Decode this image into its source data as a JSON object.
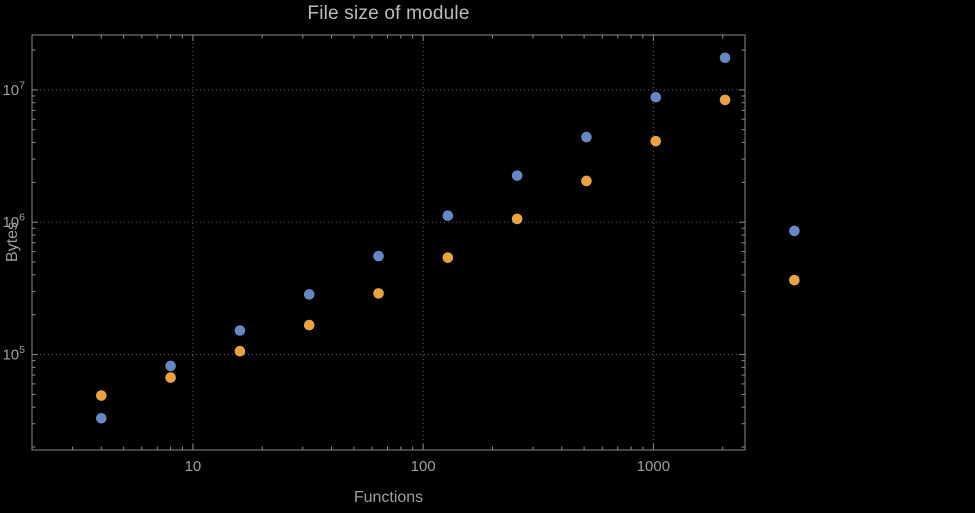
{
  "chart_data": {
    "type": "scatter",
    "title": "File size of module",
    "xlabel": "Functions",
    "ylabel": "Bytes",
    "x_scale": "log",
    "y_scale": "log",
    "x_range": [
      2,
      2500
    ],
    "y_range": [
      19000,
      26000000
    ],
    "grid": true,
    "legend_position": "none",
    "x_major_ticks": [
      {
        "value": 10,
        "label": "10"
      },
      {
        "value": 100,
        "label": "100"
      },
      {
        "value": 1000,
        "label": "1000"
      }
    ],
    "y_major_ticks": [
      {
        "value": 100000,
        "base": "10",
        "exponent": "5"
      },
      {
        "value": 1000000,
        "base": "10",
        "exponent": "6"
      },
      {
        "value": 10000000,
        "base": "10",
        "exponent": "7"
      }
    ],
    "series": [
      {
        "id": "blue-series",
        "color": "#6288C5",
        "marker": "circle",
        "x": [
          4,
          8,
          16,
          32,
          64,
          128,
          256,
          512,
          1024,
          2048,
          4096
        ],
        "y": [
          33000,
          82000,
          152000,
          285000,
          555000,
          1120000,
          2250000,
          4400000,
          8800000,
          17500000,
          860000
        ]
      },
      {
        "id": "orange-series",
        "color": "#EDA338",
        "marker": "circle",
        "x": [
          4,
          8,
          16,
          32,
          64,
          128,
          256,
          512,
          1024,
          2048,
          4096
        ],
        "y": [
          49000,
          67000,
          106000,
          167000,
          290000,
          540000,
          1060000,
          2050000,
          4100000,
          8400000,
          365000
        ]
      }
    ]
  },
  "style": {
    "background": "#000000",
    "frame_color": "#898989",
    "grid_color": "#5f5f5f",
    "tick_color": "#898989",
    "text_color": "#9e9e9e",
    "title_color": "#bdbdbd"
  }
}
